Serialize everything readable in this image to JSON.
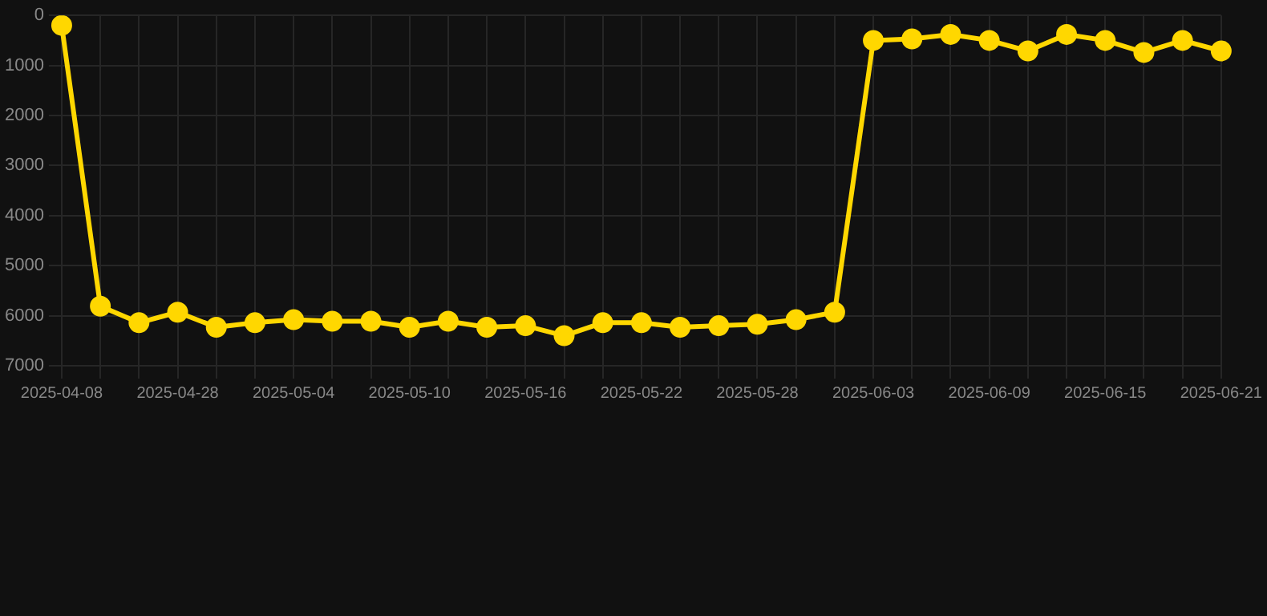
{
  "chart_data": {
    "type": "line",
    "categories": [
      "2025-04-08",
      null,
      null,
      "2025-04-28",
      null,
      null,
      "2025-05-04",
      null,
      null,
      "2025-05-10",
      null,
      null,
      "2025-05-16",
      null,
      null,
      "2025-05-22",
      null,
      null,
      "2025-05-28",
      null,
      null,
      "2025-06-03",
      null,
      null,
      "2025-06-09",
      null,
      null,
      "2025-06-15",
      null,
      null,
      "2025-06-21"
    ],
    "series": [
      {
        "color": "#ffd700",
        "values": [
          200,
          5810,
          6140,
          5930,
          6230,
          6140,
          6080,
          6110,
          6110,
          6230,
          6110,
          6230,
          6200,
          6400,
          6140,
          6140,
          6230,
          6200,
          6170,
          6080,
          5930,
          500,
          470,
          380,
          500,
          710,
          380,
          500,
          740,
          500,
          710
        ]
      }
    ],
    "ylim": [
      7000,
      0
    ],
    "yticks": [
      0,
      1000,
      2000,
      3000,
      4000,
      5000,
      6000,
      7000
    ],
    "grid": true,
    "marker": "circle",
    "line_style": "solid",
    "legend": false
  }
}
